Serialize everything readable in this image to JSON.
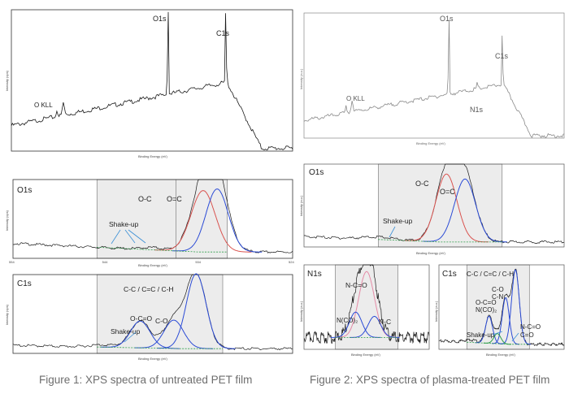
{
  "captions": {
    "fig1": "Figure 1: XPS spectra of untreated PET film",
    "fig2": "Figure 2: XPS spectra of plasma-treated PET film"
  },
  "colors": {
    "frame": "#333333",
    "spectrum": "#1a1a1a",
    "fit_red": "#d9534f",
    "fit_blue": "#2b4bd6",
    "fit_green": "#2e9e4a",
    "fit_pink": "#e58aa6",
    "shade": "#ececec",
    "arrow": "#3a8fd6",
    "caption": "#6e6e6e"
  },
  "chart_data": [
    {
      "id": "f1_survey",
      "type": "line",
      "title": "",
      "xlabel": "Binding Energy (eV)",
      "ylabel": "Intensity (cps)",
      "xlim": [
        1200,
        0
      ],
      "ylim": [
        0,
        100
      ],
      "annotations": [
        {
          "text": "O1s",
          "x": 532
        },
        {
          "text": "C1s",
          "x": 285
        },
        {
          "text": "O KLL",
          "x": 978
        }
      ]
    },
    {
      "id": "f1_o1s",
      "type": "line",
      "title": "O1s",
      "xlabel": "Binding Energy (eV)",
      "ylabel": "Intensity (cps)",
      "xlim": [
        554,
        524
      ],
      "ylim": [
        0,
        100
      ],
      "x_ticks": [
        554,
        544,
        534,
        524
      ],
      "region": [
        545,
        531
      ],
      "peaks": [
        {
          "name": "O-C",
          "center": 533.6,
          "height": 78,
          "width": 1.3,
          "color": "#d9534f"
        },
        {
          "name": "O=C",
          "center": 532.1,
          "height": 80,
          "width": 1.2,
          "color": "#2b4bd6"
        }
      ],
      "annotations": [
        {
          "text": "O-C",
          "x": 534.5
        },
        {
          "text": "O=C",
          "x": 531.2
        },
        {
          "text": "Shake-up",
          "x": 539.5
        }
      ]
    },
    {
      "id": "f1_c1s",
      "type": "line",
      "title": "C1s",
      "xlabel": "Binding Energy (eV)",
      "ylabel": "Intensity (cps)",
      "xlim": [
        298,
        278
      ],
      "ylim": [
        0,
        100
      ],
      "region": [
        292,
        283
      ],
      "peaks": [
        {
          "name": "C-C / C=C / C-H",
          "center": 284.9,
          "height": 95,
          "width": 0.7,
          "color": "#2b4bd6"
        },
        {
          "name": "C-O",
          "center": 286.5,
          "height": 36,
          "width": 0.7,
          "color": "#2b4bd6"
        },
        {
          "name": "O-C=O",
          "center": 288.9,
          "height": 34,
          "width": 0.7,
          "color": "#2b4bd6"
        }
      ],
      "annotations": [
        {
          "text": "C-C / C=C / C-H",
          "x": 286.3
        },
        {
          "text": "C-O",
          "x": 286.4
        },
        {
          "text": "O-C=O",
          "x": 289.0
        },
        {
          "text": "Shake-up",
          "x": 291.2
        }
      ]
    },
    {
      "id": "f2_survey",
      "type": "line",
      "title": "",
      "xlabel": "Binding Energy (eV)",
      "ylabel": "Intensity (a.u.)",
      "xlim": [
        1200,
        0
      ],
      "ylim": [
        0,
        100
      ],
      "annotations": [
        {
          "text": "O1s",
          "x": 532
        },
        {
          "text": "C1s",
          "x": 285
        },
        {
          "text": "N1s",
          "x": 400
        },
        {
          "text": "O KLL",
          "x": 978
        }
      ]
    },
    {
      "id": "f2_o1s",
      "type": "line",
      "title": "O1s",
      "xlabel": "Binding Energy (eV)",
      "ylabel": "Intensity (a.u.)",
      "xlim": [
        545,
        524
      ],
      "ylim": [
        0,
        100
      ],
      "region": [
        539,
        529
      ],
      "peaks": [
        {
          "name": "O-C",
          "center": 533.5,
          "height": 82,
          "width": 0.85,
          "color": "#d9534f"
        },
        {
          "name": "O=C",
          "center": 532.0,
          "height": 76,
          "width": 0.85,
          "color": "#2b4bd6"
        }
      ],
      "annotations": [
        {
          "text": "O-C",
          "x": 534.7
        },
        {
          "text": "O=C",
          "x": 531.2
        },
        {
          "text": "Shake-up",
          "x": 536.0
        }
      ]
    },
    {
      "id": "f2_n1s",
      "type": "line",
      "title": "N1s",
      "xlabel": "Binding Energy (eV)",
      "ylabel": "Intensity (a.u.)",
      "xlim": [
        408,
        392
      ],
      "ylim": [
        0,
        100
      ],
      "region": [
        404,
        396
      ],
      "peaks": [
        {
          "name": "N-C=O",
          "center": 400.0,
          "height": 78,
          "width": 1.0,
          "color": "#e58aa6"
        },
        {
          "name": "N(CO)2",
          "center": 401.4,
          "height": 30,
          "width": 0.8,
          "color": "#2b4bd6"
        },
        {
          "name": "N-C",
          "center": 399.0,
          "height": 25,
          "width": 0.8,
          "color": "#2b4bd6"
        }
      ],
      "annotations": [
        {
          "text": "N-C=O",
          "x": 401.3
        },
        {
          "text": "N(CO)₂",
          "x": 402.5
        },
        {
          "text": "N-C",
          "x": 397.8
        }
      ]
    },
    {
      "id": "f2_c1s",
      "type": "line",
      "title": "C1s",
      "xlabel": "Binding Energy (eV)",
      "ylabel": "Intensity (a.u.)",
      "xlim": [
        296,
        278
      ],
      "ylim": [
        0,
        100
      ],
      "region": [
        292,
        283
      ],
      "peaks": [
        {
          "name": "C-C / C=C / C-H",
          "center": 285.0,
          "height": 88,
          "width": 0.55,
          "color": "#2b4bd6"
        },
        {
          "name": "C-O / C-N",
          "center": 286.4,
          "height": 55,
          "width": 0.5,
          "color": "#2b4bd6"
        },
        {
          "name": "O-C=O / N(CO)2",
          "center": 288.8,
          "height": 32,
          "width": 0.5,
          "color": "#2b4bd6"
        },
        {
          "name": "N-C=O / C=O",
          "center": 287.6,
          "height": 12,
          "width": 0.5,
          "color": "#2e9e4a"
        }
      ],
      "annotations": [
        {
          "text": "C-C / C=C / C-H",
          "x": 286.5
        },
        {
          "text": "C-O",
          "x": 287.2
        },
        {
          "text": "C-N",
          "x": 287.2
        },
        {
          "text": "O-C=O",
          "x": 289.2
        },
        {
          "text": "N(CO)₂",
          "x": 289.2
        },
        {
          "text": "N-C=O",
          "x": 283.8
        },
        {
          "text": "C=O",
          "x": 283.8
        },
        {
          "text": "Shake-up",
          "x": 290.8
        }
      ]
    }
  ]
}
